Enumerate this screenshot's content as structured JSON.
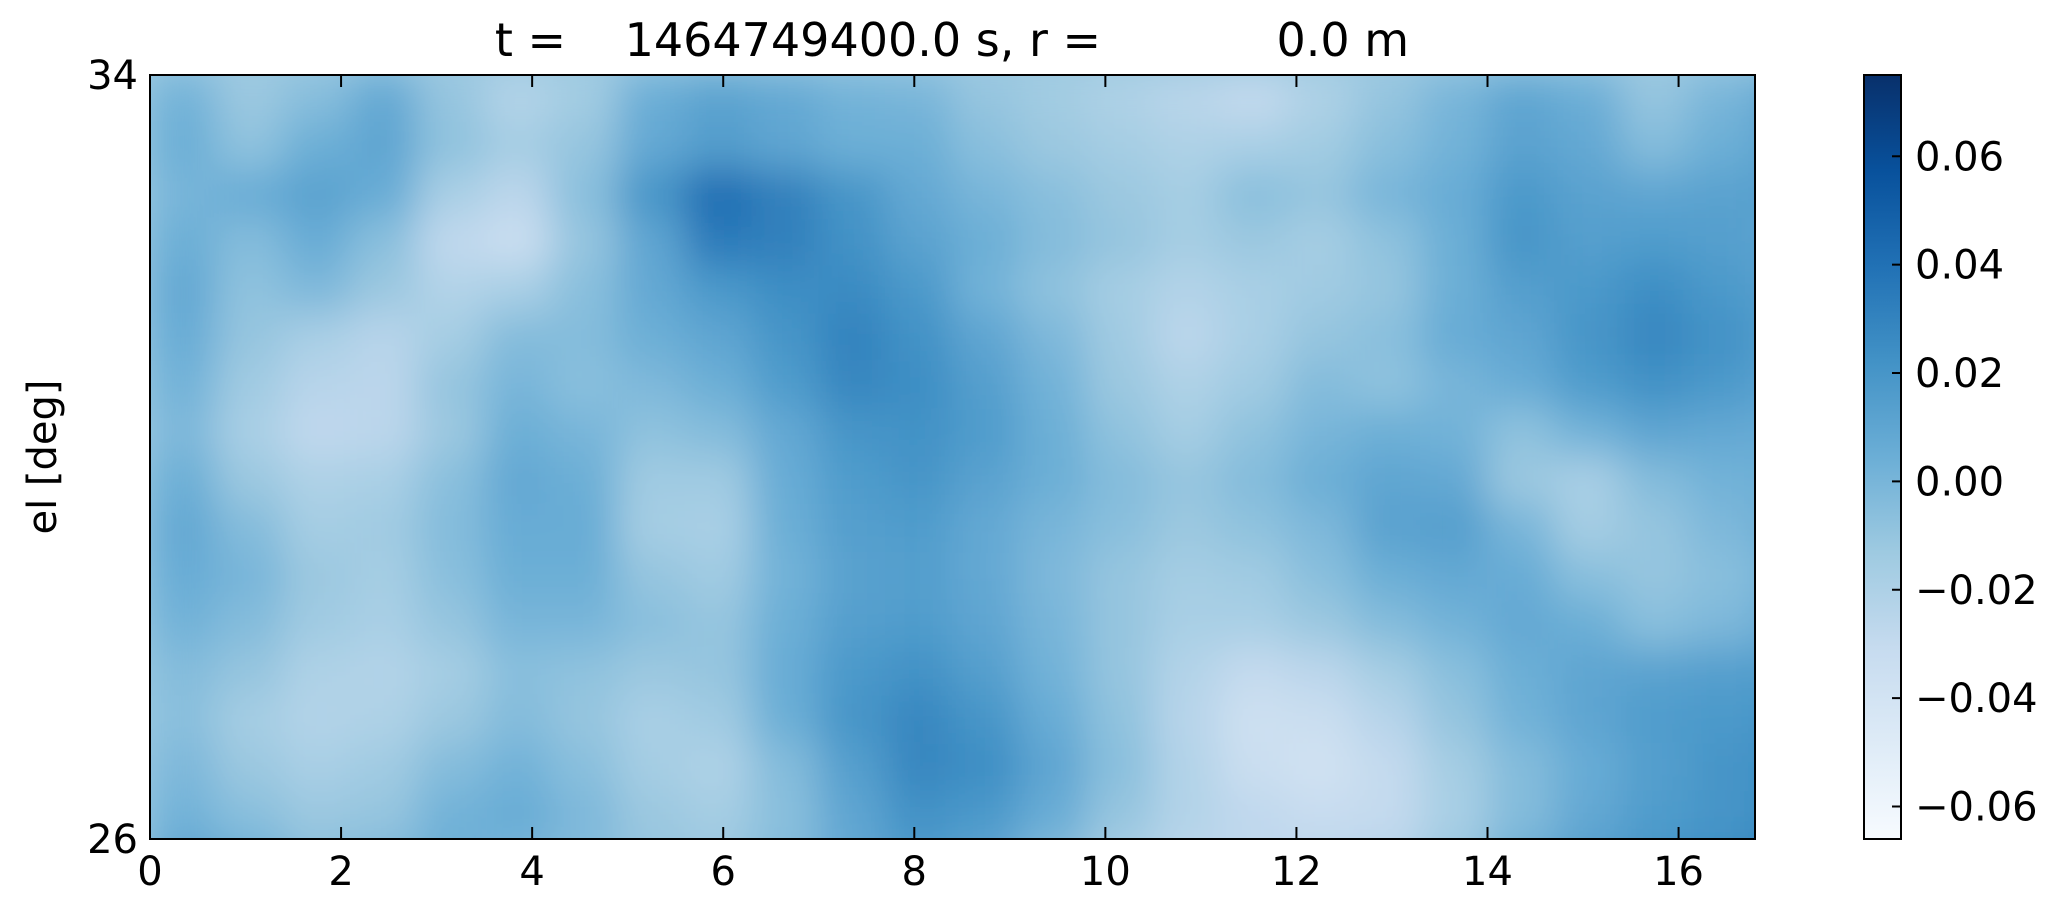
{
  "chart_data": {
    "type": "heatmap",
    "title": "t =    1464749400.0 s, r =            0.0 m",
    "xlabel": "",
    "ylabel": "el [deg]",
    "xlim": [
      0,
      16.8
    ],
    "ylim": [
      26,
      34
    ],
    "x_ticks": [
      {
        "value": 0,
        "label": "0"
      },
      {
        "value": 2,
        "label": "2"
      },
      {
        "value": 4,
        "label": "4"
      },
      {
        "value": 6,
        "label": "6"
      },
      {
        "value": 8,
        "label": "8"
      },
      {
        "value": 10,
        "label": "10"
      },
      {
        "value": 12,
        "label": "12"
      },
      {
        "value": 14,
        "label": "14"
      },
      {
        "value": 16,
        "label": "16"
      }
    ],
    "y_ticks": [
      {
        "value": 26,
        "label": "26"
      },
      {
        "value": 34,
        "label": "34"
      }
    ],
    "colorbar": {
      "colormap": "Blues",
      "range": [
        -0.066,
        0.075
      ],
      "ticks": [
        {
          "value": 0.06,
          "label": "0.06"
        },
        {
          "value": 0.04,
          "label": "0.04"
        },
        {
          "value": 0.02,
          "label": "0.02"
        },
        {
          "value": 0.0,
          "label": "0.00"
        },
        {
          "value": -0.02,
          "label": "−0.02"
        },
        {
          "value": -0.04,
          "label": "−0.04"
        },
        {
          "value": -0.06,
          "label": "−0.06"
        }
      ]
    },
    "field": {
      "x_step": 0.7,
      "y_step": 0.5,
      "values": [
        [
          0.002,
          -0.012,
          -0.005,
          0.008,
          -0.01,
          -0.022,
          -0.015,
          0.005,
          0.012,
          0.008,
          0.002,
          0.0,
          -0.01,
          -0.015,
          -0.02,
          -0.025,
          -0.03,
          -0.02,
          -0.01,
          0.0,
          0.01,
          0.005,
          -0.01,
          0.0,
          0.01
        ],
        [
          0.004,
          -0.008,
          0.004,
          0.01,
          -0.008,
          -0.016,
          -0.01,
          0.008,
          0.015,
          0.01,
          0.004,
          0.004,
          -0.006,
          -0.012,
          -0.016,
          -0.02,
          -0.018,
          -0.015,
          -0.006,
          0.002,
          0.012,
          0.008,
          -0.004,
          0.004,
          0.012
        ],
        [
          0.0,
          0.006,
          0.012,
          0.006,
          -0.018,
          -0.026,
          -0.006,
          0.02,
          0.042,
          0.032,
          0.02,
          0.008,
          0.0,
          -0.006,
          -0.012,
          -0.016,
          -0.006,
          -0.01,
          0.0,
          0.006,
          0.018,
          0.012,
          0.01,
          0.012,
          0.014
        ],
        [
          0.004,
          -0.004,
          0.006,
          -0.006,
          -0.028,
          -0.034,
          -0.01,
          0.01,
          0.035,
          0.032,
          0.022,
          0.012,
          0.004,
          -0.004,
          -0.01,
          -0.016,
          -0.012,
          -0.016,
          -0.008,
          0.004,
          0.02,
          0.014,
          0.016,
          0.014,
          0.01
        ],
        [
          0.008,
          -0.008,
          -0.002,
          -0.012,
          -0.022,
          -0.018,
          -0.006,
          0.008,
          0.018,
          0.024,
          0.026,
          0.018,
          0.002,
          -0.008,
          -0.016,
          -0.022,
          -0.018,
          -0.014,
          -0.01,
          0.004,
          0.014,
          0.018,
          0.024,
          0.018,
          0.012
        ],
        [
          0.006,
          -0.01,
          -0.018,
          -0.024,
          -0.016,
          -0.004,
          -0.004,
          0.004,
          0.01,
          0.02,
          0.03,
          0.022,
          0.01,
          -0.002,
          -0.014,
          -0.026,
          -0.018,
          -0.01,
          -0.006,
          0.006,
          0.01,
          0.02,
          0.028,
          0.022,
          0.014
        ],
        [
          0.002,
          -0.014,
          -0.024,
          -0.026,
          -0.01,
          0.0,
          -0.006,
          -0.002,
          0.004,
          0.016,
          0.028,
          0.024,
          0.014,
          0.002,
          -0.012,
          -0.02,
          -0.014,
          -0.004,
          -0.008,
          0.0,
          0.006,
          0.016,
          0.022,
          0.018,
          0.01
        ],
        [
          -0.002,
          -0.018,
          -0.028,
          -0.026,
          -0.012,
          0.004,
          0.0,
          -0.008,
          -0.004,
          0.008,
          0.02,
          0.022,
          0.016,
          0.004,
          -0.008,
          -0.016,
          -0.008,
          0.0,
          0.004,
          0.002,
          -0.008,
          0.002,
          0.01,
          0.008,
          0.006
        ],
        [
          0.004,
          -0.012,
          -0.02,
          -0.018,
          -0.006,
          0.008,
          0.004,
          -0.014,
          -0.014,
          0.006,
          0.016,
          0.02,
          0.012,
          0.004,
          -0.004,
          -0.01,
          -0.004,
          0.004,
          0.01,
          0.008,
          -0.012,
          -0.018,
          -0.004,
          0.002,
          0.004
        ],
        [
          0.008,
          -0.004,
          -0.016,
          -0.014,
          -0.004,
          0.006,
          0.006,
          -0.016,
          -0.018,
          0.004,
          0.014,
          0.016,
          0.008,
          0.0,
          -0.006,
          -0.012,
          -0.008,
          -0.002,
          0.012,
          0.014,
          0.0,
          -0.016,
          -0.01,
          -0.002,
          0.004
        ],
        [
          0.006,
          0.0,
          -0.012,
          -0.016,
          -0.006,
          0.004,
          0.004,
          -0.01,
          -0.014,
          0.002,
          0.012,
          0.014,
          0.008,
          -0.002,
          -0.01,
          -0.016,
          -0.014,
          -0.006,
          0.004,
          0.008,
          0.006,
          -0.006,
          -0.01,
          -0.006,
          0.002
        ],
        [
          0.002,
          -0.004,
          -0.014,
          -0.018,
          -0.01,
          0.0,
          0.0,
          -0.006,
          -0.01,
          0.004,
          0.014,
          0.016,
          0.01,
          0.0,
          -0.01,
          -0.018,
          -0.018,
          -0.012,
          -0.004,
          0.002,
          0.008,
          0.004,
          -0.006,
          -0.002,
          0.006
        ],
        [
          -0.004,
          -0.01,
          -0.02,
          -0.022,
          -0.016,
          -0.006,
          -0.008,
          -0.012,
          -0.01,
          0.006,
          0.018,
          0.022,
          0.014,
          0.002,
          -0.01,
          -0.022,
          -0.03,
          -0.026,
          -0.016,
          -0.006,
          0.004,
          0.01,
          0.012,
          0.014,
          0.016
        ],
        [
          -0.006,
          -0.016,
          -0.022,
          -0.02,
          -0.012,
          -0.004,
          -0.01,
          -0.018,
          -0.014,
          0.004,
          0.02,
          0.028,
          0.02,
          0.006,
          -0.008,
          -0.024,
          -0.036,
          -0.034,
          -0.024,
          -0.01,
          0.002,
          0.01,
          0.016,
          0.018,
          0.02
        ],
        [
          -0.002,
          -0.012,
          -0.018,
          -0.014,
          -0.004,
          0.002,
          -0.006,
          -0.016,
          -0.02,
          -0.004,
          0.014,
          0.028,
          0.024,
          0.01,
          -0.006,
          -0.022,
          -0.034,
          -0.038,
          -0.03,
          -0.016,
          -0.004,
          0.006,
          0.014,
          0.02,
          0.024
        ],
        [
          0.002,
          -0.006,
          -0.012,
          -0.01,
          0.002,
          0.006,
          -0.002,
          -0.012,
          -0.016,
          -0.006,
          0.01,
          0.022,
          0.018,
          0.006,
          -0.01,
          -0.022,
          -0.028,
          -0.032,
          -0.03,
          -0.018,
          -0.004,
          0.008,
          0.016,
          0.02,
          0.026
        ],
        [
          0.01,
          0.004,
          -0.006,
          -0.002,
          0.004,
          0.0,
          -0.004,
          -0.01,
          -0.012,
          -0.004,
          0.008,
          0.016,
          0.01,
          -0.004,
          -0.018,
          -0.026,
          -0.028,
          -0.026,
          -0.024,
          -0.012,
          0.004,
          0.014,
          0.02,
          0.024,
          0.03
        ]
      ]
    }
  }
}
